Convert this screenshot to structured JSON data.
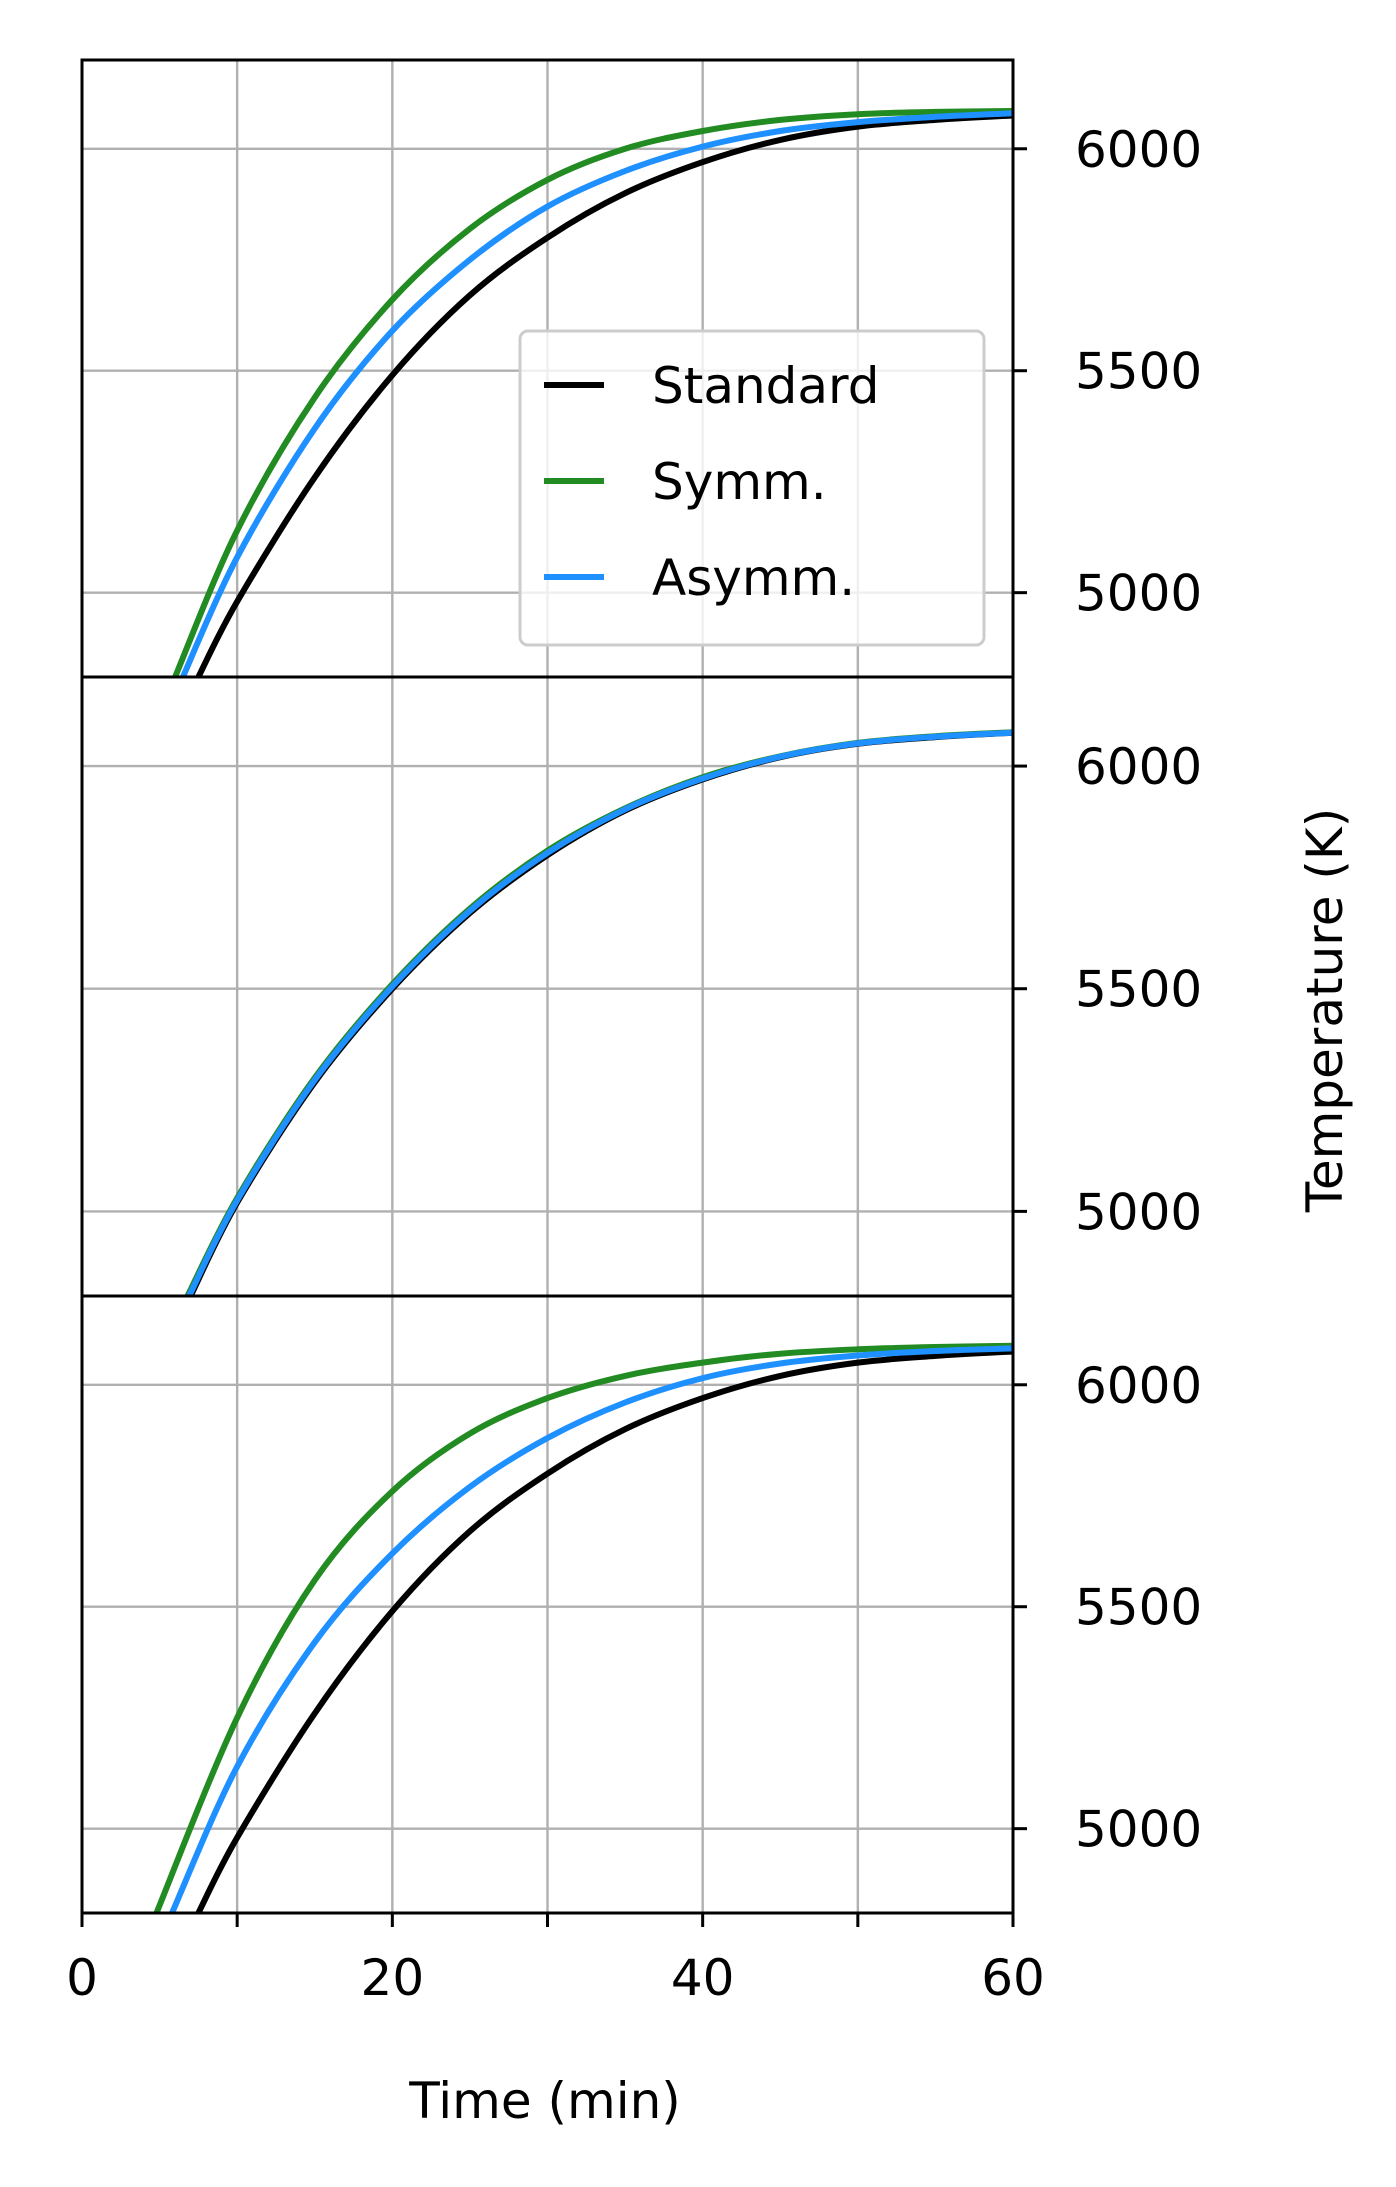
{
  "chart_data": {
    "type": "line",
    "layout": "three vertically stacked panels sharing the x axis; y axis on the right",
    "xlabel": "Time (min)",
    "ylabel": "Temperature (K)",
    "xlim": [
      0,
      60
    ],
    "ylim": [
      4810,
      6200
    ],
    "x_ticks": [
      0,
      10,
      20,
      30,
      40,
      50,
      60
    ],
    "x_tick_labels": [
      "0",
      "",
      "20",
      "",
      "40",
      "",
      "60"
    ],
    "y_ticks": [
      5000,
      5500,
      6000
    ],
    "y_tick_labels": [
      "5000",
      "5500",
      "6000"
    ],
    "grid": true,
    "legend": {
      "panel": 1,
      "placement": "center-right",
      "entries": [
        "Standard",
        "Symm.",
        "Asymm."
      ]
    },
    "series_colors": {
      "Standard": "#000000",
      "Symm.": "#228b22",
      "Asymm.": "#1e90ff"
    },
    "panels": [
      {
        "series": [
          {
            "name": "Standard",
            "x": [
              7.5,
              10,
              15,
              20,
              25,
              30,
              35,
              40,
              45,
              50,
              55,
              60
            ],
            "y": [
              4810,
              4980,
              5260,
              5490,
              5670,
              5800,
              5900,
              5970,
              6020,
              6050,
              6065,
              6075
            ]
          },
          {
            "name": "Symm.",
            "x": [
              6,
              10,
              15,
              20,
              25,
              30,
              35,
              40,
              45,
              50,
              55,
              60
            ],
            "y": [
              4810,
              5140,
              5440,
              5660,
              5820,
              5930,
              6000,
              6040,
              6065,
              6078,
              6083,
              6085
            ]
          },
          {
            "name": "Asymm.",
            "x": [
              6.5,
              10,
              15,
              20,
              25,
              30,
              35,
              40,
              45,
              50,
              55,
              60
            ],
            "y": [
              4810,
              5080,
              5370,
              5590,
              5750,
              5870,
              5950,
              6005,
              6040,
              6060,
              6072,
              6080
            ]
          }
        ]
      },
      {
        "series": [
          {
            "name": "Standard",
            "x": [
              7,
              10,
              15,
              20,
              25,
              30,
              35,
              40,
              45,
              50,
              55,
              60
            ],
            "y": [
              4810,
              5020,
              5290,
              5500,
              5670,
              5800,
              5900,
              5970,
              6020,
              6050,
              6065,
              6075
            ]
          },
          {
            "name": "Symm.",
            "x": [
              6.8,
              10,
              15,
              20,
              25,
              30,
              35,
              40,
              45,
              50,
              55,
              60
            ],
            "y": [
              4810,
              5030,
              5300,
              5510,
              5680,
              5810,
              5905,
              5975,
              6022,
              6052,
              6067,
              6076
            ]
          },
          {
            "name": "Asymm.",
            "x": [
              6.9,
              10,
              15,
              20,
              25,
              30,
              35,
              40,
              45,
              50,
              55,
              60
            ],
            "y": [
              4810,
              5025,
              5295,
              5505,
              5675,
              5805,
              5903,
              5972,
              6021,
              6051,
              6066,
              6075
            ]
          }
        ]
      },
      {
        "series": [
          {
            "name": "Standard",
            "x": [
              7.5,
              10,
              15,
              20,
              25,
              30,
              35,
              40,
              45,
              50,
              55,
              60
            ],
            "y": [
              4810,
              4980,
              5260,
              5490,
              5670,
              5800,
              5900,
              5970,
              6020,
              6050,
              6065,
              6075
            ]
          },
          {
            "name": "Symm.",
            "x": [
              4.8,
              10,
              15,
              20,
              25,
              30,
              35,
              40,
              45,
              50,
              55,
              60
            ],
            "y": [
              4810,
              5250,
              5560,
              5760,
              5890,
              5970,
              6020,
              6050,
              6070,
              6080,
              6085,
              6088
            ]
          },
          {
            "name": "Asymm.",
            "x": [
              5.8,
              10,
              15,
              20,
              25,
              30,
              35,
              40,
              45,
              50,
              55,
              60
            ],
            "y": [
              4810,
              5140,
              5420,
              5620,
              5770,
              5880,
              5960,
              6015,
              6048,
              6066,
              6076,
              6082
            ]
          }
        ]
      }
    ]
  }
}
